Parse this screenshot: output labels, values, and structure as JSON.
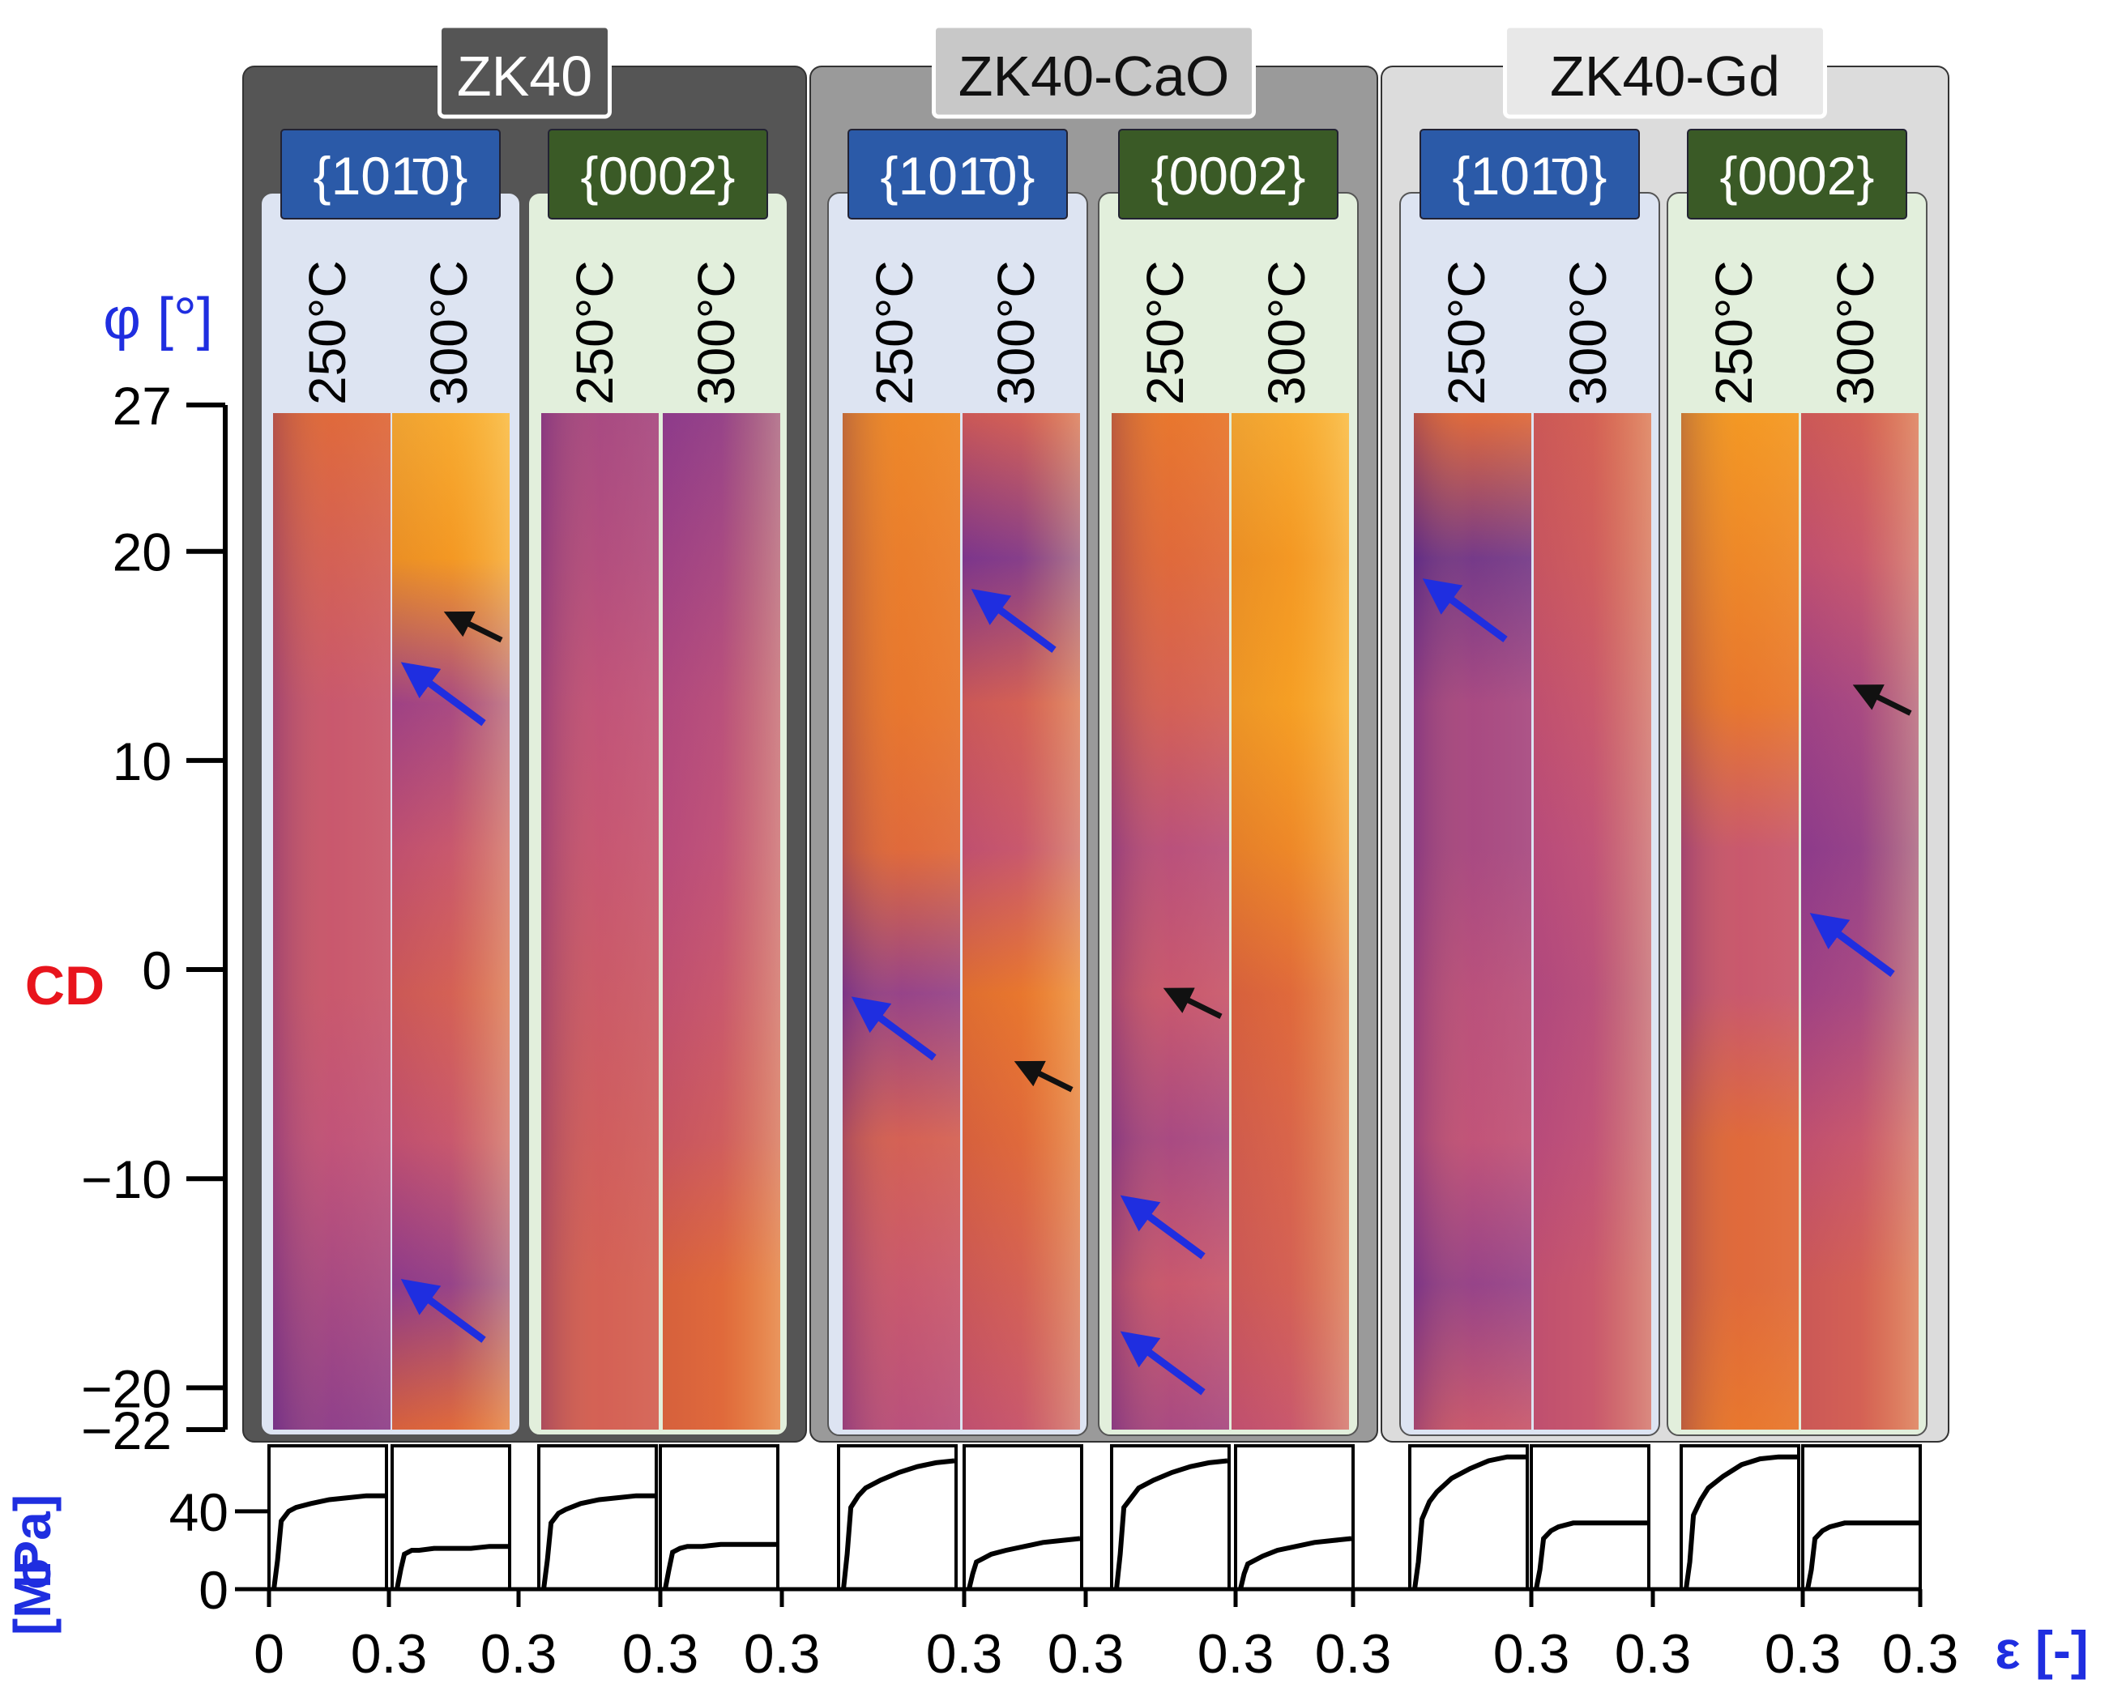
{
  "phi_axis": {
    "label": "φ [°]",
    "ticks": [
      "27",
      "20",
      "10",
      "0",
      "−10",
      "−20",
      "−22"
    ],
    "cd_label": "CD",
    "label_color": "#1f2ee0",
    "cd_color": "#e8141c"
  },
  "stress_axis": {
    "label_top": "σ",
    "label_bottom": "[MPa]",
    "ticks": [
      "40",
      "0"
    ],
    "label_color": "#1f2ee0"
  },
  "strain_axis": {
    "label": "ε [-]",
    "tick_labels": [
      "0",
      "0.3",
      "0.3",
      "0.3",
      "0.3",
      "0.3",
      "0.3",
      "0.3",
      "0.3",
      "0.3",
      "0.3",
      "0.3",
      "0.3"
    ],
    "label_color": "#1f2ee0"
  },
  "colors": {
    "plane_prism": "#2b5aa8",
    "plane_basal": "#3a5a26",
    "group_zk40": "#555555",
    "group_cao": "#9a9a9a",
    "group_gd": "#dcdcdc",
    "sub_prism_bg": "#dde4f2",
    "sub_basal_bg": "#e2efdc",
    "arrow_blue": "#1f2ee0",
    "arrow_black": "#111111"
  },
  "groups": [
    {
      "name": "ZK40",
      "planes": [
        {
          "label": "{101̄0}",
          "type": "prism",
          "temps": [
            "250°C",
            "300°C"
          ]
        },
        {
          "label": "{0002}",
          "type": "basal",
          "temps": [
            "250°C",
            "300°C"
          ]
        }
      ]
    },
    {
      "name": "ZK40-CaO",
      "planes": [
        {
          "label": "{101̄0}",
          "type": "prism",
          "temps": [
            "250°C",
            "300°C"
          ]
        },
        {
          "label": "{0002}",
          "type": "basal",
          "temps": [
            "250°C",
            "300°C"
          ]
        }
      ]
    },
    {
      "name": "ZK40-Gd",
      "planes": [
        {
          "label": "{101̄0}",
          "type": "prism",
          "temps": [
            "250°C",
            "300°C"
          ]
        },
        {
          "label": "{0002}",
          "type": "basal",
          "temps": [
            "250°C",
            "300°C"
          ]
        }
      ]
    }
  ],
  "chart_data": {
    "type": "line",
    "title": "",
    "xlabel": "ε [-]",
    "ylabel": "σ [MPa]",
    "xlim": [
      0,
      0.3
    ],
    "ylim": [
      0,
      70
    ],
    "categories": [
      "ZK40 {101̄0} 250°C",
      "ZK40 {101̄0} 300°C",
      "ZK40 {0002} 250°C",
      "ZK40 {0002} 300°C",
      "ZK40-CaO {101̄0} 250°C",
      "ZK40-CaO {101̄0} 300°C",
      "ZK40-CaO {0002} 250°C",
      "ZK40-CaO {0002} 300°C",
      "ZK40-Gd {101̄0} 250°C",
      "ZK40-Gd {101̄0} 300°C",
      "ZK40-Gd {0002} 250°C",
      "ZK40-Gd {0002} 300°C"
    ],
    "x": [
      0,
      0.01,
      0.02,
      0.04,
      0.06,
      0.1,
      0.15,
      0.2,
      0.25,
      0.3
    ],
    "series": [
      {
        "values": [
          0,
          15,
          35,
          40,
          42,
          44,
          46,
          47,
          48,
          48
        ]
      },
      {
        "values": [
          0,
          10,
          18,
          20,
          20,
          21,
          21,
          21,
          22,
          22
        ]
      },
      {
        "values": [
          0,
          15,
          34,
          39,
          41,
          44,
          46,
          47,
          48,
          48
        ]
      },
      {
        "values": [
          0,
          10,
          19,
          21,
          22,
          22,
          23,
          23,
          23,
          23
        ]
      },
      {
        "values": [
          0,
          18,
          42,
          48,
          52,
          56,
          60,
          63,
          65,
          66
        ]
      },
      {
        "values": [
          0,
          8,
          14,
          16,
          18,
          20,
          22,
          24,
          25,
          26
        ]
      },
      {
        "values": [
          0,
          18,
          42,
          47,
          52,
          56,
          60,
          63,
          65,
          66
        ]
      },
      {
        "values": [
          0,
          8,
          13,
          15,
          17,
          20,
          22,
          24,
          25,
          26
        ]
      },
      {
        "values": [
          0,
          14,
          36,
          45,
          50,
          57,
          62,
          66,
          68,
          68
        ]
      },
      {
        "values": [
          0,
          10,
          26,
          30,
          32,
          34,
          34,
          34,
          34,
          34
        ]
      },
      {
        "values": [
          0,
          14,
          38,
          46,
          52,
          58,
          64,
          67,
          68,
          68
        ]
      },
      {
        "values": [
          0,
          10,
          26,
          30,
          32,
          34,
          34,
          34,
          34,
          34
        ]
      }
    ]
  },
  "maps": {
    "colormap": [
      "#2a1060",
      "#5a2d8a",
      "#8c3a8e",
      "#c14e7a",
      "#e3682f",
      "#f59a1f",
      "#fcd560",
      "#fff7b0"
    ],
    "phi_range": [
      -22,
      27
    ],
    "levels": [
      [
        0.55,
        0.5,
        0.45,
        0.45,
        0.45,
        0.42,
        0.35,
        0.28
      ],
      [
        0.75,
        0.7,
        0.35,
        0.45,
        0.5,
        0.45,
        0.3,
        0.55
      ],
      [
        0.35,
        0.38,
        0.42,
        0.44,
        0.46,
        0.48,
        0.5,
        0.5
      ],
      [
        0.3,
        0.35,
        0.4,
        0.42,
        0.45,
        0.48,
        0.55,
        0.55
      ],
      [
        0.65,
        0.62,
        0.6,
        0.55,
        0.3,
        0.5,
        0.45,
        0.4
      ],
      [
        0.5,
        0.25,
        0.5,
        0.45,
        0.6,
        0.55,
        0.5,
        0.45
      ],
      [
        0.6,
        0.55,
        0.5,
        0.4,
        0.45,
        0.35,
        0.45,
        0.35
      ],
      [
        0.75,
        0.7,
        0.72,
        0.65,
        0.55,
        0.52,
        0.5,
        0.45
      ],
      [
        0.55,
        0.2,
        0.35,
        0.35,
        0.4,
        0.42,
        0.3,
        0.45
      ],
      [
        0.5,
        0.48,
        0.45,
        0.42,
        0.4,
        0.42,
        0.45,
        0.45
      ],
      [
        0.7,
        0.65,
        0.6,
        0.45,
        0.45,
        0.55,
        0.55,
        0.6
      ],
      [
        0.5,
        0.45,
        0.35,
        0.3,
        0.35,
        0.45,
        0.5,
        0.5
      ]
    ],
    "arrows": [
      {
        "map": 1,
        "color": "black",
        "phi": 17
      },
      {
        "map": 1,
        "color": "blue",
        "phi": 14.5
      },
      {
        "map": 1,
        "color": "blue",
        "phi": -15
      },
      {
        "map": 5,
        "color": "blue",
        "phi": 18
      },
      {
        "map": 4,
        "color": "blue",
        "phi": -1.5
      },
      {
        "map": 5,
        "color": "black",
        "phi": -4.5
      },
      {
        "map": 6,
        "color": "black",
        "phi": -1
      },
      {
        "map": 6,
        "color": "blue",
        "phi": -11
      },
      {
        "map": 6,
        "color": "blue",
        "phi": -17.5
      },
      {
        "map": 8,
        "color": "blue",
        "phi": 18.5
      },
      {
        "map": 11,
        "color": "black",
        "phi": 13.5
      },
      {
        "map": 11,
        "color": "blue",
        "phi": 2.5
      }
    ]
  }
}
